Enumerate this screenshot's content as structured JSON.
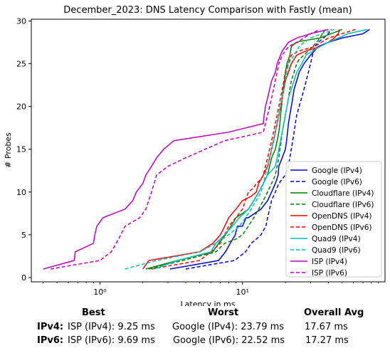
{
  "chart_data": {
    "type": "line",
    "title": "December_2023: DNS Latency Comparison with Fastly (mean)",
    "xlabel": "Latency in ms",
    "ylabel": "# Probes",
    "xscale": "log",
    "xlim": [
      0.33,
      100
    ],
    "ylim": [
      -0.5,
      30.2
    ],
    "xticks": [
      1,
      10
    ],
    "xtick_labels": [
      "10⁰",
      "10¹"
    ],
    "yticks": [
      0,
      5,
      10,
      15,
      20,
      25,
      30
    ],
    "grid": false,
    "legend_position": "lower-right",
    "series": [
      {
        "name": "Google (IPv4)",
        "color": "#0000dd",
        "dash": "solid",
        "x": [
          3.1,
          6.8,
          7.6,
          8.2,
          8.9,
          9.2,
          10.0,
          10.6,
          11.0,
          13.5,
          15.0,
          16.0,
          17.0,
          17.8,
          18.0,
          19.0,
          20.0,
          20.4,
          20.7,
          21.0,
          21.5,
          22.0,
          22.5,
          23.0,
          24.0,
          25.0,
          27.0,
          30.0,
          34.0,
          40.0,
          50.0,
          70.0,
          78.0
        ],
        "y": [
          1,
          2,
          3,
          4,
          5,
          6,
          6,
          7,
          7,
          8,
          9,
          10,
          11,
          12,
          13,
          14,
          15,
          16,
          17,
          18,
          19,
          20,
          21,
          22,
          23,
          24,
          25,
          26,
          27,
          27.5,
          28,
          28.5,
          29
        ]
      },
      {
        "name": "Google (IPv6)",
        "color": "#0000dd",
        "dash": "dashed",
        "x": [
          4.0,
          8.8,
          10.5,
          11.5,
          12.5,
          13.5,
          14.0,
          14.6,
          15.0,
          15.5,
          16.0,
          17.0,
          18.0,
          20.0,
          21.0,
          21.5,
          22.0,
          22.5,
          23.0,
          23.5,
          24.0,
          25.0,
          26.0,
          27.0,
          28.0,
          29.0,
          30.0,
          31.0,
          32.0,
          34.0,
          37.0,
          40.0,
          42.0
        ],
        "y": [
          1,
          2,
          3,
          4,
          4.5,
          5,
          5.5,
          6,
          7,
          8,
          9,
          10,
          11,
          12,
          13,
          14,
          15,
          16,
          17,
          18,
          19,
          20,
          21,
          22,
          23,
          24,
          25,
          26,
          27,
          27.5,
          28,
          28.5,
          29
        ]
      },
      {
        "name": "Cloudflare (IPv4)",
        "color": "#008000",
        "dash": "solid",
        "x": [
          2.1,
          3.5,
          6.2,
          6.8,
          7.6,
          8.3,
          9.0,
          10.0,
          11.0,
          12.0,
          13.0,
          14.0,
          15.0,
          15.5,
          16.0,
          17.0,
          17.5,
          18.0,
          18.3,
          18.5,
          18.8,
          19.0,
          19.3,
          19.7,
          20.0,
          20.5,
          21.0,
          21.5,
          22.0,
          23.0,
          25.0,
          35.0,
          50.0
        ],
        "y": [
          1,
          2,
          3,
          4,
          5,
          6,
          7,
          7.5,
          8,
          9,
          10,
          11,
          12,
          13,
          14,
          15,
          16,
          17,
          18,
          19,
          20,
          21,
          22,
          23,
          24,
          25,
          25.5,
          26,
          27,
          27.3,
          27.6,
          28,
          29
        ]
      },
      {
        "name": "Cloudflare (IPv6)",
        "color": "#008000",
        "dash": "dashed",
        "x": [
          2.2,
          3.8,
          6.5,
          7.5,
          9.0,
          10.0,
          11.0,
          12.0,
          13.0,
          14.0,
          15.0,
          16.0,
          17.0,
          17.5,
          18.0,
          18.3,
          18.7,
          19.0,
          19.5,
          20.0,
          20.5,
          21.0,
          21.5,
          22.0,
          23.0,
          24.0,
          25.0,
          27.0,
          29.0,
          31.0,
          33.0,
          35.0,
          38.0
        ],
        "y": [
          1,
          2,
          3,
          4,
          4.5,
          5,
          6,
          7,
          8,
          9,
          10,
          11,
          12,
          13,
          14,
          15,
          16,
          17,
          18,
          19,
          20,
          21,
          22,
          23,
          24,
          25,
          25.5,
          26,
          26.5,
          27,
          27.5,
          28,
          29
        ]
      },
      {
        "name": "OpenDNS (IPv4)",
        "color": "#ff0000",
        "dash": "solid",
        "x": [
          2.0,
          2.2,
          5.0,
          6.2,
          7.0,
          7.5,
          8.0,
          9.0,
          10.0,
          11.5,
          12.5,
          13.0,
          14.0,
          15.0,
          15.5,
          16.0,
          16.5,
          17.0,
          17.5,
          18.0,
          18.5,
          19.0,
          19.5,
          20.0,
          21.0,
          22.0,
          24.0,
          28.0,
          35.0,
          40.0,
          44.0,
          47.0,
          48.0
        ],
        "y": [
          1,
          2,
          3,
          4,
          5,
          6,
          7,
          8,
          9,
          9.5,
          10,
          11,
          12,
          13,
          14,
          15,
          16,
          17,
          18,
          19,
          20,
          21,
          22,
          23,
          24,
          25,
          26,
          26.5,
          27,
          27.5,
          28,
          28.5,
          29
        ]
      },
      {
        "name": "OpenDNS (IPv6)",
        "color": "#ff0000",
        "dash": "dashed",
        "x": [
          2.3,
          5.0,
          6.0,
          7.0,
          7.5,
          8.0,
          9.0,
          10.0,
          10.5,
          11.0,
          12.0,
          12.5,
          13.5,
          14.0,
          14.5,
          15.0,
          15.5,
          16.0,
          16.5,
          17.0,
          17.5,
          18.0,
          18.5,
          19.0,
          19.5,
          20.0,
          21.0,
          22.0,
          25.0,
          32.0,
          40.0,
          50.0,
          62.0
        ],
        "y": [
          1,
          2,
          3,
          4,
          5,
          6,
          7,
          8,
          9,
          10,
          10.5,
          11,
          11.5,
          12,
          13,
          14,
          15,
          16,
          17,
          18,
          19,
          20,
          21,
          22,
          23,
          24,
          25,
          26,
          26.5,
          27,
          28,
          28.5,
          29
        ]
      },
      {
        "name": "Quad9 (IPv4)",
        "color": "#00bfbf",
        "dash": "solid",
        "x": [
          2.4,
          3.5,
          6.0,
          6.5,
          7.5,
          8.5,
          9.5,
          11.0,
          12.0,
          13.0,
          14.0,
          15.0,
          16.0,
          17.0,
          17.5,
          18.0,
          18.5,
          19.0,
          19.5,
          20.0,
          20.5,
          21.0,
          22.0,
          23.0,
          24.0,
          26.0,
          28.0,
          31.0,
          35.0,
          40.0,
          47.0,
          55.0,
          75.0
        ],
        "y": [
          1,
          2,
          3,
          4,
          5,
          6,
          7,
          8,
          9,
          10,
          11,
          12,
          12.5,
          13,
          14,
          15,
          16,
          17,
          18,
          19,
          20,
          21,
          22,
          23,
          24,
          25,
          26,
          26.5,
          27,
          27.5,
          28,
          28.5,
          29
        ]
      },
      {
        "name": "Quad9 (IPv6)",
        "color": "#00bfbf",
        "dash": "dashed",
        "x": [
          1.5,
          2.5,
          5.0,
          6.5,
          8.0,
          9.5,
          10.5,
          11.5,
          12.5,
          13.5,
          14.0,
          14.5,
          15.0,
          15.5,
          16.0,
          16.5,
          17.0,
          17.5,
          18.0,
          18.5,
          19.0,
          19.5,
          20.0,
          20.5,
          21.0,
          22.0,
          23.0,
          24.0,
          25.0,
          27.0,
          30.0,
          36.0,
          44.0
        ],
        "y": [
          1,
          2,
          3,
          4,
          5,
          6,
          7,
          8,
          9,
          10,
          11,
          12,
          13,
          14,
          15,
          16,
          17,
          18,
          19,
          20,
          21,
          22,
          23,
          24,
          25,
          25.5,
          26,
          26.5,
          27,
          27.5,
          28,
          28.5,
          29
        ]
      },
      {
        "name": "ISP (IPv4)",
        "color": "#bf00bf",
        "dash": "solid",
        "x": [
          0.4,
          0.66,
          0.67,
          0.9,
          0.92,
          0.95,
          1.05,
          1.5,
          1.7,
          1.8,
          2.0,
          2.1,
          2.3,
          2.5,
          2.8,
          3.3,
          8.0,
          14.0,
          14.2,
          14.5,
          15.0,
          15.5,
          16.0,
          17.0,
          17.5,
          18.0,
          18.5,
          19.0,
          20.0,
          21.0,
          24.0,
          30.0,
          40.0
        ],
        "y": [
          1,
          2,
          3,
          4,
          5,
          6,
          7,
          8,
          9,
          10,
          11,
          12,
          13,
          14,
          15,
          16,
          17,
          18,
          19,
          20,
          21,
          22,
          23,
          24,
          25,
          25.5,
          26,
          26.5,
          27,
          27.5,
          28,
          28.5,
          29
        ]
      },
      {
        "name": "ISP (IPv6)",
        "color": "#bf00bf",
        "dash": "dashed",
        "x": [
          0.45,
          1.0,
          1.2,
          1.3,
          1.4,
          1.5,
          1.9,
          2.0,
          2.1,
          2.2,
          2.3,
          2.4,
          2.5,
          3.0,
          4.0,
          7.5,
          14.0,
          14.5,
          15.0,
          15.5,
          16.0,
          16.5,
          17.0,
          17.5,
          18.0,
          18.5,
          19.0,
          20.0,
          21.0,
          24.0,
          27.0,
          30.0,
          35.0
        ],
        "y": [
          1,
          2,
          3,
          4,
          5,
          6,
          7,
          7.5,
          8,
          9,
          10,
          11,
          12,
          13,
          14,
          16,
          17,
          18,
          19,
          20,
          21,
          22,
          23,
          24,
          25,
          25.5,
          26,
          26.5,
          27,
          27.5,
          28,
          28.5,
          29
        ]
      }
    ]
  },
  "summary": {
    "headers": {
      "best": "Best",
      "worst": "Worst",
      "overall": "Overall Avg"
    },
    "rows": [
      {
        "label": "IPv4:",
        "best": "ISP (IPv4): 9.25 ms",
        "worst": "Google (IPv4): 23.79 ms",
        "overall": "17.67 ms"
      },
      {
        "label": "IPv6:",
        "best": "ISP (IPv6): 9.69 ms",
        "worst": "Google (IPv6): 22.52 ms",
        "overall": "17.27 ms"
      }
    ]
  }
}
